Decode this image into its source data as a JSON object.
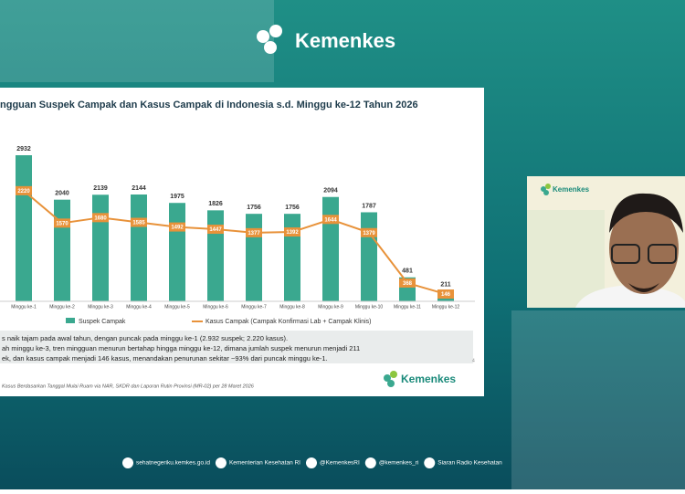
{
  "header": {
    "logo": "Kemenkes"
  },
  "chart_data": {
    "type": "bar-line",
    "title": "ngguan Suspek Campak dan Kasus Campak di Indonesia s.d. Minggu ke-12 Tahun 2026",
    "categories": [
      "Minggu ke-1",
      "Minggu ke-2",
      "Minggu ke-3",
      "Minggu ke-4",
      "Minggu ke-5",
      "Minggu ke-6",
      "Minggu ke-7",
      "Minggu ke-8",
      "Minggu ke-9",
      "Minggu ke-10",
      "Minggu ke-11",
      "Minggu ke-12"
    ],
    "series": [
      {
        "name": "Suspek Campak",
        "type": "bar",
        "color": "#3aa88f",
        "values": [
          2932,
          2040,
          2139,
          2144,
          1975,
          1826,
          1756,
          1756,
          2094,
          1787,
          481,
          211
        ]
      },
      {
        "name": "Kasus Campak (Campak Konfirmasi Lab + Campak Klinis)",
        "type": "line",
        "color": "#e8923a",
        "values": [
          2220,
          1570,
          1680,
          1585,
          1492,
          1447,
          1377,
          1392,
          1644,
          1379,
          368,
          146
        ]
      }
    ]
  },
  "slide": {
    "bullets": [
      "s naik tajam pada awal tahun, dengan puncak pada minggu ke-1 (2.932 suspek; 2.220 kasus).",
      "ah minggu ke-3, tren mingguan menurun bertahap hingga minggu ke-12, dimana jumlah suspek menurun menjadi 211",
      "ek, dan kasus campak menjadi 146 kasus, menandakan penurunan sekitar ~93% dari puncak minggu ke-1."
    ],
    "source": "Kasus Berdasarkan Tanggal Mulai Ruam via NAR, SKDR dan Laporan Rutin Provinsi (MR-02) per 28 Maret 2026",
    "page_number": "4",
    "logo": "Kemenkes"
  },
  "webcam": {
    "logo": "Kemenkes"
  },
  "footer": {
    "links": [
      "sehatnegeriku.kemkes.go.id",
      "Kementerian Kesehatan RI",
      "@KemenkesRI",
      "@kemenkes_ri",
      "Siaran Radio Kesehatan"
    ]
  }
}
